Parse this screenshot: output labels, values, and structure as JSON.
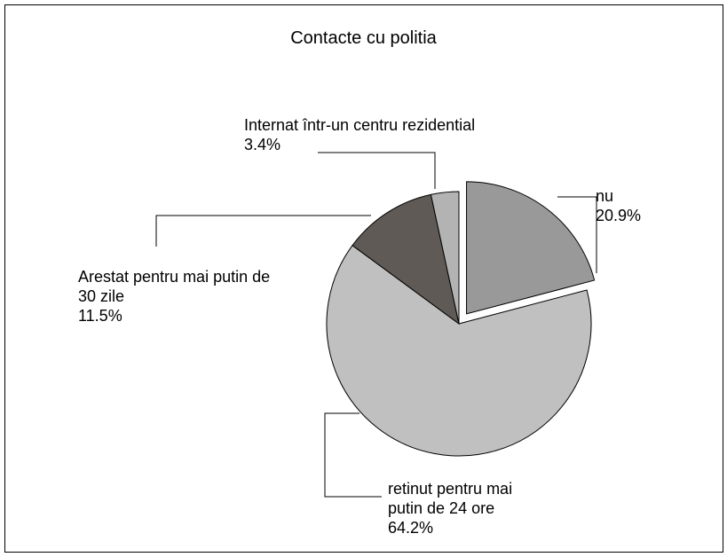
{
  "chart_data": {
    "type": "pie",
    "title": "Contacte cu politia",
    "categories": [
      "nu",
      "retinut pentru mai putin de 24 ore",
      "Arestat pentru mai putin de 30 zile",
      "Internat într-un centru rezidential"
    ],
    "values": [
      20.9,
      64.2,
      11.5,
      3.4
    ],
    "value_labels": [
      "20.9%",
      "64.2%",
      "11.5%",
      "3.4%"
    ],
    "colors": [
      "#999999",
      "#c0c0c0",
      "#5f5a55",
      "#b3b3b3"
    ],
    "exploded": [
      "nu"
    ]
  }
}
